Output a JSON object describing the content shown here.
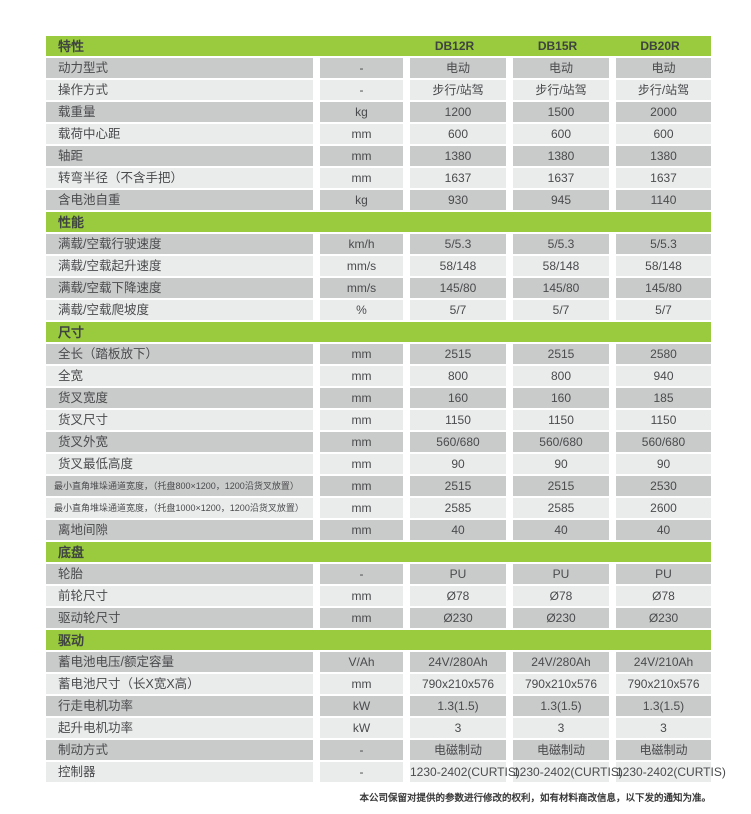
{
  "page": {
    "footer_note": "本公司保留对提供的参数进行修改的权利，如有材料商改信息，以下发的通知为准。"
  },
  "colors": {
    "accent_green": "#9aca3d",
    "row_dark": "#c9caca",
    "row_light": "#eaebeb",
    "text": "#4a4b4d"
  },
  "table": {
    "header": {
      "title": "特性",
      "unit_header": "",
      "model_columns": [
        "DB12R",
        "DB15R",
        "DB20R"
      ]
    },
    "sections": [
      {
        "title": "",
        "rows": [
          {
            "label": "动力型式",
            "unit": "-",
            "values": [
              "电动",
              "电动",
              "电动"
            ]
          },
          {
            "label": "操作方式",
            "unit": "-",
            "values": [
              "步行/站驾",
              "步行/站驾",
              "步行/站驾"
            ]
          },
          {
            "label": "载重量",
            "unit": "kg",
            "values": [
              "1200",
              "1500",
              "2000"
            ]
          },
          {
            "label": "载荷中心距",
            "unit": "mm",
            "values": [
              "600",
              "600",
              "600"
            ]
          },
          {
            "label": "轴距",
            "unit": "mm",
            "values": [
              "1380",
              "1380",
              "1380"
            ]
          },
          {
            "label": "转弯半径（不含手把）",
            "unit": "mm",
            "values": [
              "1637",
              "1637",
              "1637"
            ]
          },
          {
            "label": "含电池自重",
            "unit": "kg",
            "values": [
              "930",
              "945",
              "1140"
            ]
          }
        ]
      },
      {
        "title": "性能",
        "rows": [
          {
            "label": "满载/空载行驶速度",
            "unit": "km/h",
            "values": [
              "5/5.3",
              "5/5.3",
              "5/5.3"
            ]
          },
          {
            "label": "满载/空载起升速度",
            "unit": "mm/s",
            "values": [
              "58/148",
              "58/148",
              "58/148"
            ]
          },
          {
            "label": "满载/空载下降速度",
            "unit": "mm/s",
            "values": [
              "145/80",
              "145/80",
              "145/80"
            ]
          },
          {
            "label": "满载/空载爬坡度",
            "unit": "%",
            "values": [
              "5/7",
              "5/7",
              "5/7"
            ]
          }
        ]
      },
      {
        "title": "尺寸",
        "rows": [
          {
            "label": "全长（踏板放下）",
            "unit": "mm",
            "values": [
              "2515",
              "2515",
              "2580"
            ]
          },
          {
            "label": "全宽",
            "unit": "mm",
            "values": [
              "800",
              "800",
              "940"
            ]
          },
          {
            "label": "货叉宽度",
            "unit": "mm",
            "values": [
              "160",
              "160",
              "185"
            ]
          },
          {
            "label": "货叉尺寸",
            "unit": "mm",
            "values": [
              "1150",
              "1150",
              "1150"
            ]
          },
          {
            "label": "货叉外宽",
            "unit": "mm",
            "values": [
              "560/680",
              "560/680",
              "560/680"
            ]
          },
          {
            "label": "货叉最低高度",
            "unit": "mm",
            "values": [
              "90",
              "90",
              "90"
            ]
          },
          {
            "label": "最小直角堆垛通道宽度，（托盘800×1200，1200沿货叉放置）",
            "unit": "mm",
            "values": [
              "2515",
              "2515",
              "2530"
            ],
            "small_label": true
          },
          {
            "label": "最小直角堆垛通道宽度，（托盘1000×1200，1200沿货叉放置）",
            "unit": "mm",
            "values": [
              "2585",
              "2585",
              "2600"
            ],
            "small_label": true
          },
          {
            "label": "离地间隙",
            "unit": "mm",
            "values": [
              "40",
              "40",
              "40"
            ]
          }
        ]
      },
      {
        "title": "底盘",
        "rows": [
          {
            "label": "轮胎",
            "unit": "-",
            "values": [
              "PU",
              "PU",
              "PU"
            ]
          },
          {
            "label": "前轮尺寸",
            "unit": "mm",
            "values": [
              "Ø78",
              "Ø78",
              "Ø78"
            ]
          },
          {
            "label": "驱动轮尺寸",
            "unit": "mm",
            "values": [
              "Ø230",
              "Ø230",
              "Ø230"
            ]
          }
        ]
      },
      {
        "title": "驱动",
        "rows": [
          {
            "label": "蓄电池电压/额定容量",
            "unit": "V/Ah",
            "values": [
              "24V/280Ah",
              "24V/280Ah",
              "24V/210Ah"
            ]
          },
          {
            "label": "蓄电池尺寸（长X宽X高）",
            "unit": "mm",
            "values": [
              "790x210x576",
              "790x210x576",
              "790x210x576"
            ]
          },
          {
            "label": "行走电机功率",
            "unit": "kW",
            "values": [
              "1.3(1.5)",
              "1.3(1.5)",
              "1.3(1.5)"
            ]
          },
          {
            "label": "起升电机功率",
            "unit": "kW",
            "values": [
              "3",
              "3",
              "3"
            ]
          },
          {
            "label": "制动方式",
            "unit": "-",
            "values": [
              "电磁制动",
              "电磁制动",
              "电磁制动"
            ]
          },
          {
            "label": "控制器",
            "unit": "-",
            "values": [
              "1230-2402(CURTIS)",
              "1230-2402(CURTIS)",
              "1230-2402(CURTIS)"
            ]
          }
        ]
      }
    ]
  }
}
